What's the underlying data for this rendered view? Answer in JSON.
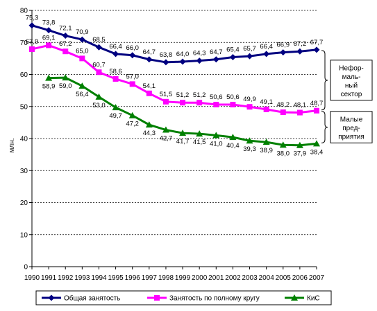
{
  "chart_data": {
    "type": "line",
    "ylabel": "млн.",
    "ylim": [
      0,
      80
    ],
    "yticks": [
      "0",
      "10",
      "20",
      "30",
      "40",
      "50",
      "60",
      "70",
      "80"
    ],
    "x": [
      "1990",
      "1991",
      "1992",
      "1993",
      "1994",
      "1995",
      "1996",
      "1997",
      "1998",
      "1999",
      "2000",
      "2001",
      "2002",
      "2003",
      "2004",
      "2005",
      "2006",
      "2007"
    ],
    "grid": "horizontal dotted",
    "legend": "bottom",
    "series": [
      {
        "name": "Общая занятость",
        "color": "#000080",
        "marker": "diamond",
        "values": [
          75.3,
          73.8,
          72.1,
          70.9,
          68.5,
          66.4,
          66.0,
          64.7,
          63.8,
          64.0,
          64.3,
          64.7,
          65.4,
          65.7,
          66.4,
          66.9,
          67.2,
          67.7
        ],
        "labels": [
          "75,3",
          "73,8",
          "72,1",
          "70,9",
          "68,5",
          "66,4",
          "66,0",
          "64,7",
          "63,8",
          "64,0",
          "64,3",
          "64,7",
          "65,4",
          "65,7",
          "66,4",
          "66,9",
          "67,2",
          "67,7"
        ]
      },
      {
        "name": "Занятость по полному кругу",
        "color": "#ff00ff",
        "marker": "square",
        "values": [
          67.9,
          69.1,
          67.2,
          65.0,
          60.7,
          58.6,
          57.0,
          54.1,
          51.5,
          51.2,
          51.2,
          50.6,
          50.6,
          49.9,
          49.1,
          48.2,
          48.1,
          48.7
        ],
        "labels": [
          "67,9",
          "69,1",
          "67,2",
          "65,0",
          "60,7",
          "58,6",
          "57,0",
          "54,1",
          "51,5",
          "51,2",
          "51,2",
          "50,6",
          "50,6",
          "49,9",
          "49,1",
          "48,2",
          "48,1",
          "48,7"
        ]
      },
      {
        "name": "КиС",
        "color": "#008000",
        "marker": "triangle",
        "values": [
          null,
          58.9,
          59.0,
          56.4,
          53.0,
          49.7,
          47.2,
          44.3,
          42.7,
          41.7,
          41.5,
          41.0,
          40.4,
          39.3,
          38.9,
          38.0,
          37.9,
          38.4
        ],
        "labels": [
          "",
          "58,9",
          "59,0",
          "56,4",
          "53,0",
          "49,7",
          "47,2",
          "44,3",
          "42,7",
          "41,7",
          "41,5",
          "41,0",
          "40,4",
          "39,3",
          "38,9",
          "38,0",
          "37,9",
          "38,4"
        ]
      }
    ],
    "annotations": [
      {
        "lines": [
          "Нефор-",
          "маль-",
          "ный",
          "сектор"
        ],
        "from": 67.7,
        "to": 48.7
      },
      {
        "lines": [
          "Малые",
          "пред-",
          "приятия"
        ],
        "from": 48.7,
        "to": 38.4
      }
    ]
  }
}
